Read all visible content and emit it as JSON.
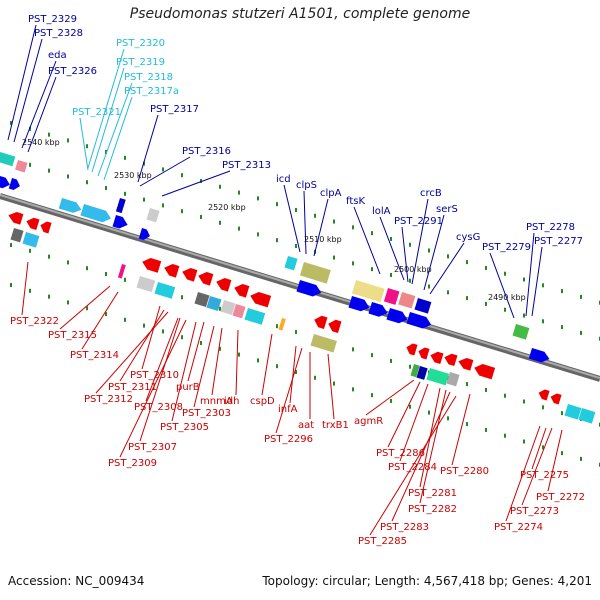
{
  "title": "Pseudomonas stutzeri A1501, complete genome",
  "accession_text": "Accession: NC_009434",
  "summary_text": "Topology: circular; Length: 4,567,418 bp; Genes: 4,201",
  "colors": {
    "upper_label": "#000099",
    "upper_label_light": "#22bbdd",
    "lower_label": "#cc0000",
    "axis": "#888888",
    "tick": "#228822"
  },
  "coordinate_ticks": [
    {
      "label": "2540 kbp"
    },
    {
      "label": "2530 kbp"
    },
    {
      "label": "2520 kbp"
    },
    {
      "label": "2510 kbp"
    },
    {
      "label": "2500 kbp"
    },
    {
      "label": "2490 kbp"
    }
  ],
  "upper_genes": [
    {
      "label": "PST_2329",
      "color": "#000099"
    },
    {
      "label": "PST_2328",
      "color": "#000099"
    },
    {
      "label": "eda",
      "color": "#000099"
    },
    {
      "label": "PST_2326",
      "color": "#000099"
    },
    {
      "label": "PST_2320",
      "color": "#22bbdd"
    },
    {
      "label": "PST_2319",
      "color": "#22bbdd"
    },
    {
      "label": "PST_2318",
      "color": "#22bbdd"
    },
    {
      "label": "PST_2317a",
      "color": "#22bbdd"
    },
    {
      "label": "PST_2321",
      "color": "#22bbdd"
    },
    {
      "label": "PST_2317",
      "color": "#000099"
    },
    {
      "label": "PST_2316",
      "color": "#000099"
    },
    {
      "label": "PST_2313",
      "color": "#000099"
    },
    {
      "label": "icd",
      "color": "#000099"
    },
    {
      "label": "clpS",
      "color": "#000099"
    },
    {
      "label": "clpA",
      "color": "#000099"
    },
    {
      "label": "ftsK",
      "color": "#000099"
    },
    {
      "label": "lolA",
      "color": "#000099"
    },
    {
      "label": "crcB",
      "color": "#000099"
    },
    {
      "label": "PST_2291",
      "color": "#000099"
    },
    {
      "label": "serS",
      "color": "#000099"
    },
    {
      "label": "cysG",
      "color": "#000099"
    },
    {
      "label": "PST_2279",
      "color": "#000099"
    },
    {
      "label": "PST_2278",
      "color": "#000099"
    },
    {
      "label": "PST_2277",
      "color": "#000099"
    }
  ],
  "lower_genes": [
    {
      "label": "PST_2322"
    },
    {
      "label": "PST_2315"
    },
    {
      "label": "PST_2314"
    },
    {
      "label": "PST_2310"
    },
    {
      "label": "PST_2311"
    },
    {
      "label": "PST_2312"
    },
    {
      "label": "PST_2308"
    },
    {
      "label": "purB"
    },
    {
      "label": "mnmA"
    },
    {
      "label": "idh"
    },
    {
      "label": "PST_2303"
    },
    {
      "label": "PST_2305"
    },
    {
      "label": "PST_2307"
    },
    {
      "label": "PST_2309"
    },
    {
      "label": "cspD"
    },
    {
      "label": "infA"
    },
    {
      "label": "aat"
    },
    {
      "label": "trxB1"
    },
    {
      "label": "PST_2296"
    },
    {
      "label": "agmR"
    },
    {
      "label": "PST_2286"
    },
    {
      "label": "PST_2284"
    },
    {
      "label": "PST_2281"
    },
    {
      "label": "PST_2282"
    },
    {
      "label": "PST_2283"
    },
    {
      "label": "PST_2285"
    },
    {
      "label": "PST_2280"
    },
    {
      "label": "PST_2275"
    },
    {
      "label": "PST_2272"
    },
    {
      "label": "PST_2273"
    },
    {
      "label": "PST_2274"
    }
  ]
}
